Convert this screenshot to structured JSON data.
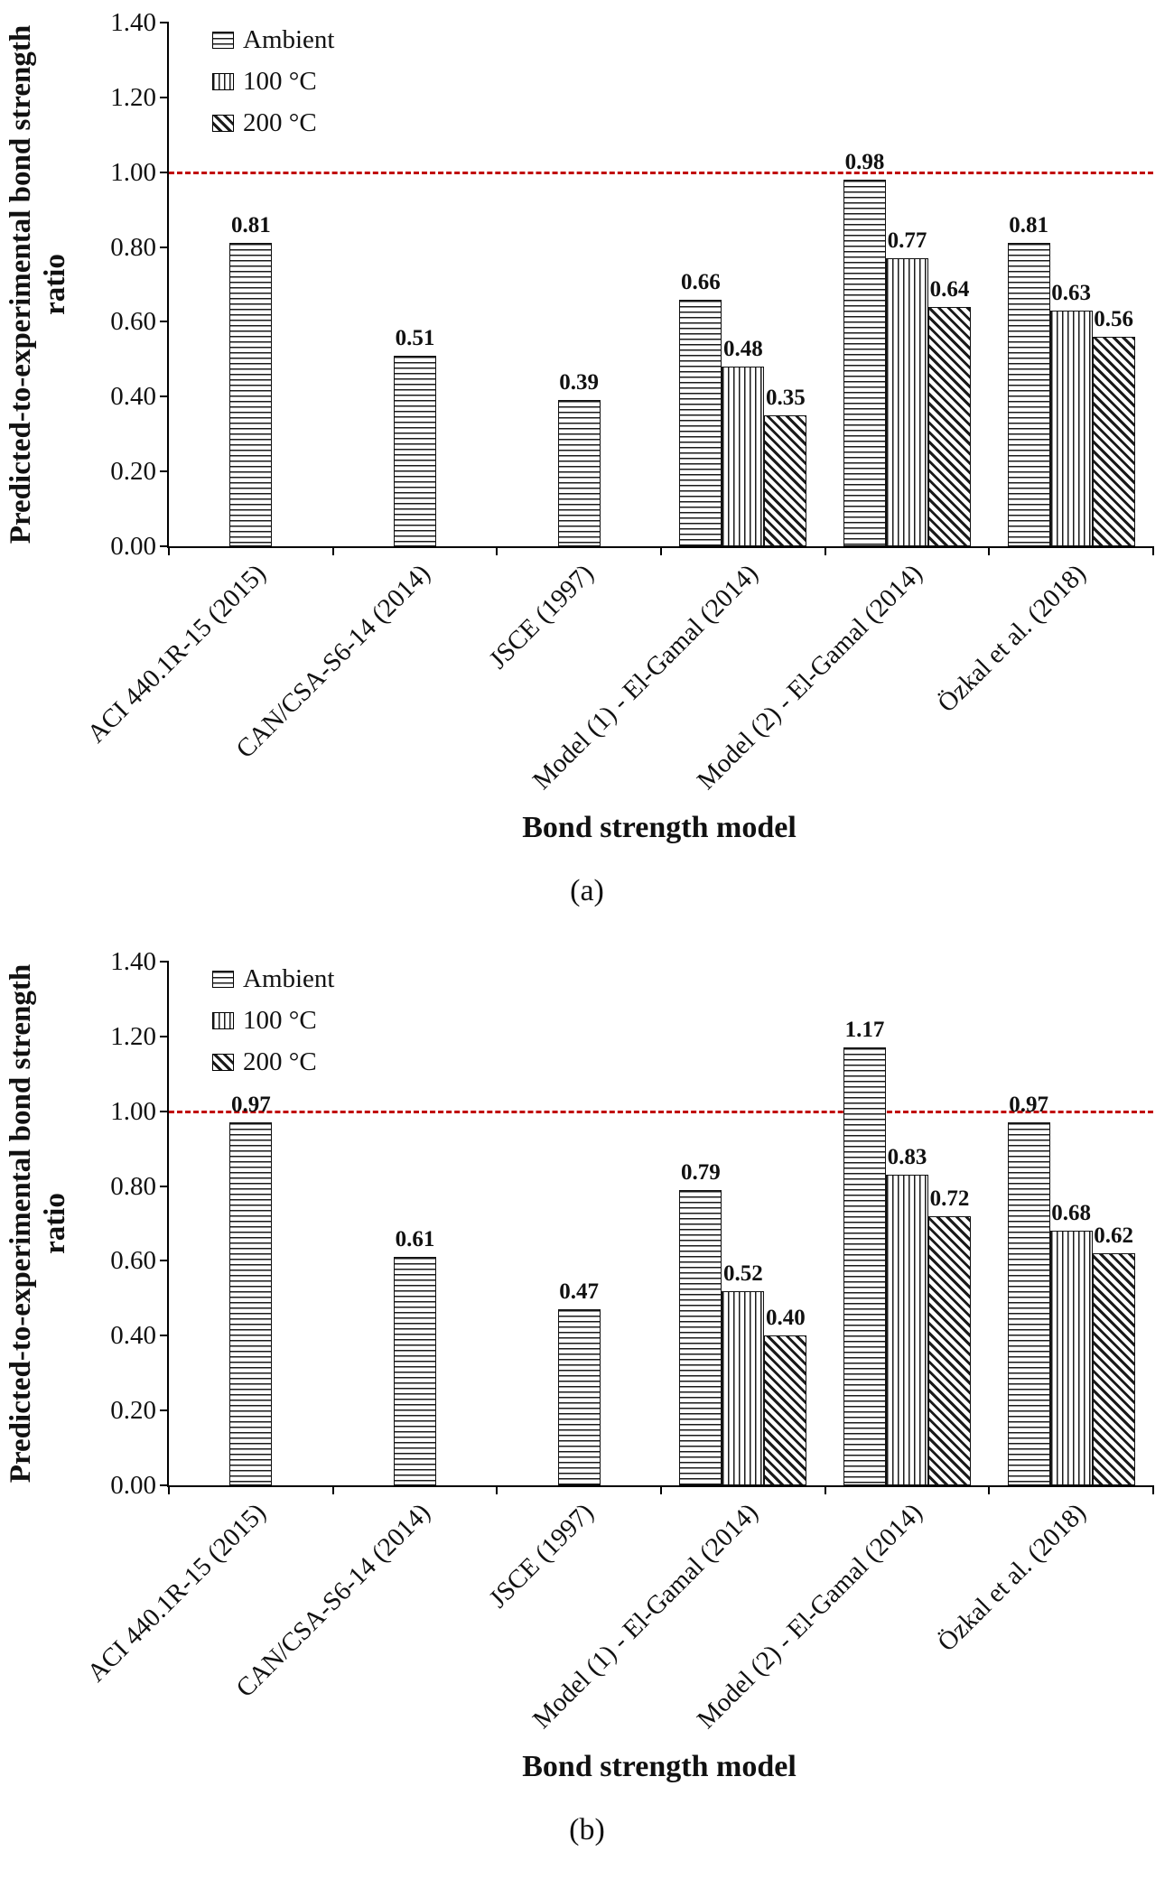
{
  "chart_data": [
    {
      "type": "bar",
      "panel_label": "(a)",
      "ylabel": "Predicted-to-experimental bond strength ratio",
      "xlabel": "Bond strength model",
      "ylim": [
        0,
        1.4
      ],
      "yticks": [
        0.0,
        0.2,
        0.4,
        0.6,
        0.8,
        1.0,
        1.2,
        1.4
      ],
      "grid": false,
      "legend_position": "top-left-inside",
      "reference_line": {
        "value": 1.0,
        "color": "#c00000",
        "style": "dashed"
      },
      "categories": [
        "ACI 440.1R-15 (2015)",
        "CAN/CSA-S6-14 (2014)",
        "JSCE  (1997)",
        "Model (1) - El-Gamal (2014)",
        "Model (2) - El-Gamal (2014)",
        "Özkal et al. (2018)"
      ],
      "series": [
        {
          "name": "Ambient",
          "pattern": "horizontal-lines",
          "values": [
            0.81,
            0.51,
            0.39,
            0.66,
            0.98,
            0.81
          ]
        },
        {
          "name": "100 °C",
          "pattern": "vertical-lines",
          "values": [
            null,
            null,
            null,
            0.48,
            0.77,
            0.63
          ]
        },
        {
          "name": "200 °C",
          "pattern": "diagonal-lines",
          "values": [
            null,
            null,
            null,
            0.35,
            0.64,
            0.56
          ]
        }
      ]
    },
    {
      "type": "bar",
      "panel_label": "(b)",
      "ylabel": "Predicted-to-experimental bond strength ratio",
      "xlabel": "Bond strength model",
      "ylim": [
        0,
        1.4
      ],
      "yticks": [
        0.0,
        0.2,
        0.4,
        0.6,
        0.8,
        1.0,
        1.2,
        1.4
      ],
      "grid": false,
      "legend_position": "top-left-inside",
      "reference_line": {
        "value": 1.0,
        "color": "#c00000",
        "style": "dashed"
      },
      "categories": [
        "ACI 440.1R-15 (2015)",
        "CAN/CSA-S6-14 (2014)",
        "JSCE  (1997)",
        "Model (1) - El-Gamal (2014)",
        "Model (2) - El-Gamal (2014)",
        "Özkal et al. (2018)"
      ],
      "series": [
        {
          "name": "Ambient",
          "pattern": "horizontal-lines",
          "values": [
            0.97,
            0.61,
            0.47,
            0.79,
            1.17,
            0.97
          ]
        },
        {
          "name": "100 °C",
          "pattern": "vertical-lines",
          "values": [
            null,
            null,
            null,
            0.52,
            0.83,
            0.68
          ]
        },
        {
          "name": "200 °C",
          "pattern": "diagonal-lines",
          "values": [
            null,
            null,
            null,
            0.4,
            0.72,
            0.62
          ]
        }
      ]
    }
  ]
}
